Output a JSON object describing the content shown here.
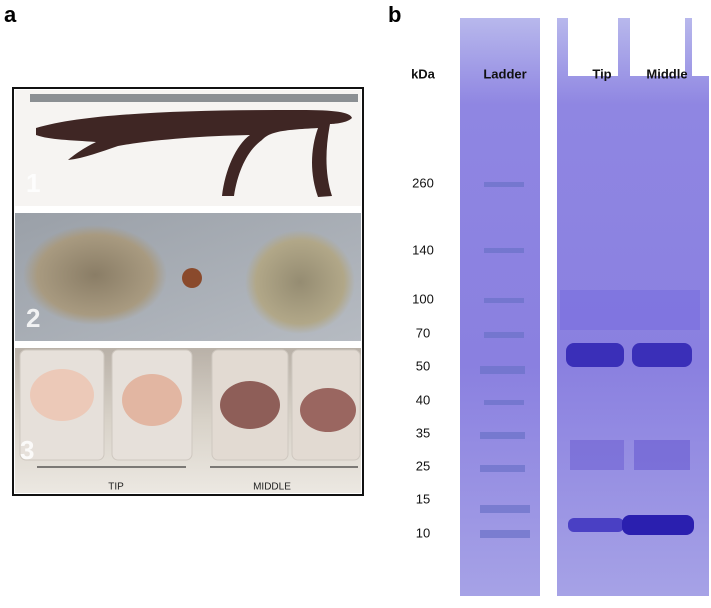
{
  "panels": {
    "a": {
      "label": "a",
      "photos": [
        {
          "number": "1"
        },
        {
          "number": "2"
        },
        {
          "number": "3"
        }
      ],
      "groups": [
        "TIP",
        "MIDDLE"
      ]
    },
    "b": {
      "label": "b",
      "unit": "kDa",
      "lanes": [
        "Ladder",
        "Tip",
        "Middle"
      ],
      "markers": [
        "260",
        "140",
        "100",
        "70",
        "50",
        "40",
        "35",
        "25",
        "15",
        "10"
      ]
    }
  }
}
